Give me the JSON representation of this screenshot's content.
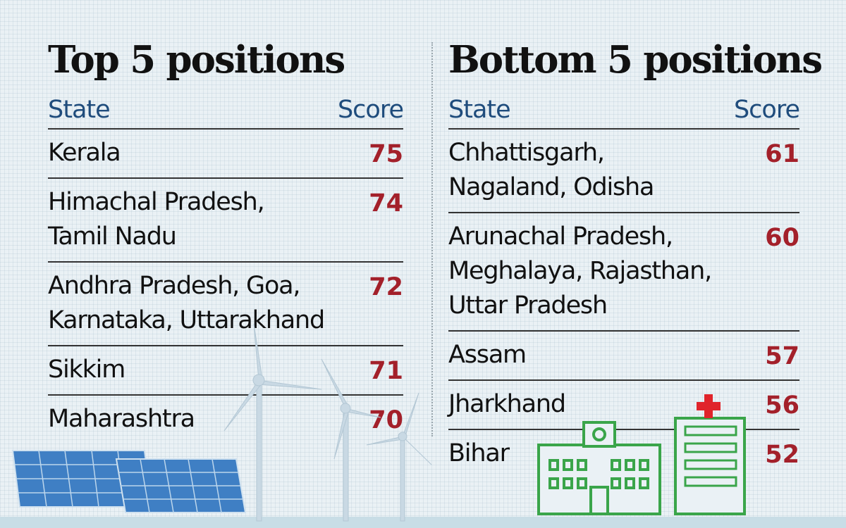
{
  "chart_data": {
    "type": "table",
    "tables": [
      {
        "title": "Top 5 positions",
        "columns": [
          "State",
          "Score"
        ],
        "rows": [
          {
            "lines": [
              "Kerala"
            ],
            "score": 75
          },
          {
            "lines": [
              "Himachal Pradesh,",
              "Tamil Nadu"
            ],
            "score": 74
          },
          {
            "lines": [
              "Andhra Pradesh, Goa,",
              "Karnataka, Uttarakhand"
            ],
            "score": 72
          },
          {
            "lines": [
              "Sikkim"
            ],
            "score": 71
          },
          {
            "lines": [
              "Maharashtra"
            ],
            "score": 70
          }
        ]
      },
      {
        "title": "Bottom 5 positions",
        "columns": [
          "State",
          "Score"
        ],
        "rows": [
          {
            "lines": [
              "Chhattisgarh,",
              "Nagaland, Odisha"
            ],
            "score": 61
          },
          {
            "lines": [
              "Arunachal Pradesh,",
              "Meghalaya, Rajasthan,",
              "Uttar Pradesh"
            ],
            "score": 60
          },
          {
            "lines": [
              "Assam"
            ],
            "score": 57
          },
          {
            "lines": [
              "Jharkhand"
            ],
            "score": 56
          },
          {
            "lines": [
              "Bihar"
            ],
            "score": 52
          }
        ]
      }
    ]
  },
  "colors": {
    "header_text": "#1f4c7c",
    "score_text": "#a3202a",
    "title_text": "#111111",
    "illustration_green": "#3aa54a",
    "solar_blue": "#3f7fc4"
  },
  "decorations": [
    "solar-panel-icon",
    "wind-turbine-icon",
    "hospital-building-icon",
    "clinic-building-icon",
    "red-cross-icon"
  ]
}
